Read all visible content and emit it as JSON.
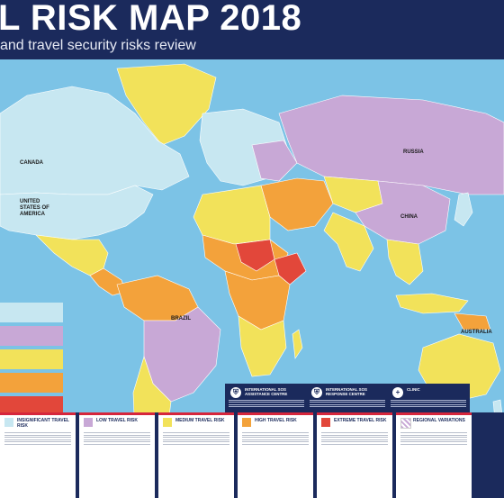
{
  "header": {
    "title": "L RISK MAP 2018",
    "subtitle": "and travel security risks review"
  },
  "map": {
    "ocean_color": "#7cc3e6",
    "labels": {
      "canada": "CANADA",
      "usa": "UNITED STATES OF AMERICA",
      "russia": "RUSSIA",
      "china": "CHINA",
      "brazil": "BRAZIL",
      "australia": "AUSTRALIA"
    }
  },
  "colors": {
    "insignificant": "#c7e7f1",
    "low": "#c8a8d6",
    "medium": "#f2e25a",
    "high": "#f3a23b",
    "extreme": "#e2473a",
    "brand_navy": "#1b2a5c",
    "brand_red": "#d6263c"
  },
  "services": [
    {
      "title": "INTERNATIONAL SOS ASSISTANCE CENTRE",
      "icon": "shield-icon"
    },
    {
      "title": "INTERNATIONAL SOS RESPONSE CENTRE",
      "icon": "shield-icon"
    },
    {
      "title": "CLINIC",
      "icon": "medical-cross-icon"
    }
  ],
  "legend": [
    {
      "label": "INSIGNIFICANT TRAVEL RISK",
      "color": "#c7e7f1"
    },
    {
      "label": "LOW TRAVEL RISK",
      "color": "#c8a8d6"
    },
    {
      "label": "MEDIUM TRAVEL RISK",
      "color": "#f2e25a"
    },
    {
      "label": "HIGH TRAVEL RISK",
      "color": "#f3a23b"
    },
    {
      "label": "EXTREME TRAVEL RISK",
      "color": "#e2473a"
    },
    {
      "label": "REGIONAL VARIATIONS",
      "color": "#ffffff"
    }
  ]
}
